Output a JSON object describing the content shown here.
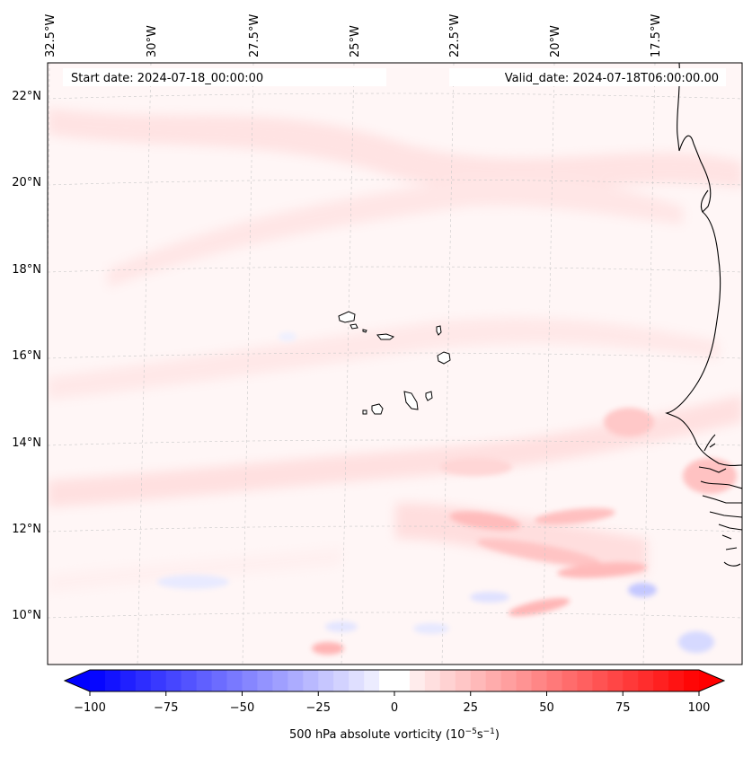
{
  "header": {
    "start_date": "Start date: 2024-07-18_00:00:00",
    "valid_date": "Valid_date: 2024-07-18T06:00:00.00"
  },
  "map": {
    "lon_labels": [
      "32.5°W",
      "30°W",
      "27.5°W",
      "25°W",
      "22.5°W",
      "20°W",
      "17.5°W"
    ],
    "lat_labels": [
      "22°N",
      "20°N",
      "18°N",
      "16°N",
      "14°N",
      "12°N",
      "10°N"
    ],
    "lon_range": [
      -33,
      -16
    ],
    "lat_range": [
      8.8,
      22.8
    ],
    "gridlines": "dashed light gray",
    "field": "500 hPa absolute vorticity",
    "colors": {
      "negative": "#0000ff",
      "zero": "#ffffff",
      "positive": "#ff0000",
      "coast": "#000000"
    }
  },
  "colorbar": {
    "ticks": [
      "−100",
      "−75",
      "−50",
      "−25",
      "0",
      "25",
      "50",
      "75",
      "100"
    ],
    "tick_values": [
      -100,
      -75,
      -50,
      -25,
      0,
      25,
      50,
      75,
      100
    ],
    "range": [
      -100,
      100
    ],
    "label_main": "500 hPa absolute vorticity (10",
    "label_exp1": "−5",
    "label_mid": "s",
    "label_exp2": "−1",
    "label_end": ")"
  }
}
